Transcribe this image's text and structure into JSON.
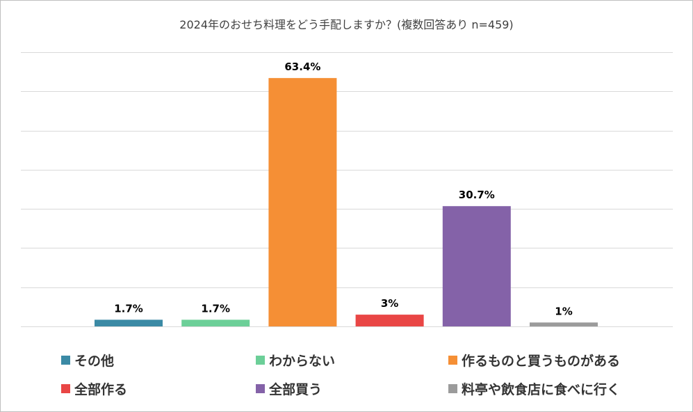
{
  "chart_data": {
    "type": "bar",
    "title": "2024年のおせち料理をどう手配しますか？(複数回答あり n=459)",
    "categories": [
      "その他",
      "わからない",
      "作るものと買うものがある",
      "全部作る",
      "全部買う",
      "料亭や飲食店に食べに行く"
    ],
    "values": [
      1.7,
      1.7,
      63.4,
      3,
      30.7,
      1
    ],
    "data_labels": [
      "1.7%",
      "1.7%",
      "63.4%",
      "3%",
      "30.7%",
      "1%"
    ],
    "colors": [
      "#3b8aa5",
      "#6ccf98",
      "#f58f35",
      "#e94645",
      "#8462a8",
      "#9b9b9b"
    ],
    "ylim": [
      0,
      70
    ],
    "grid": true,
    "xlabel": "",
    "ylabel": "",
    "legend_position": "bottom"
  }
}
